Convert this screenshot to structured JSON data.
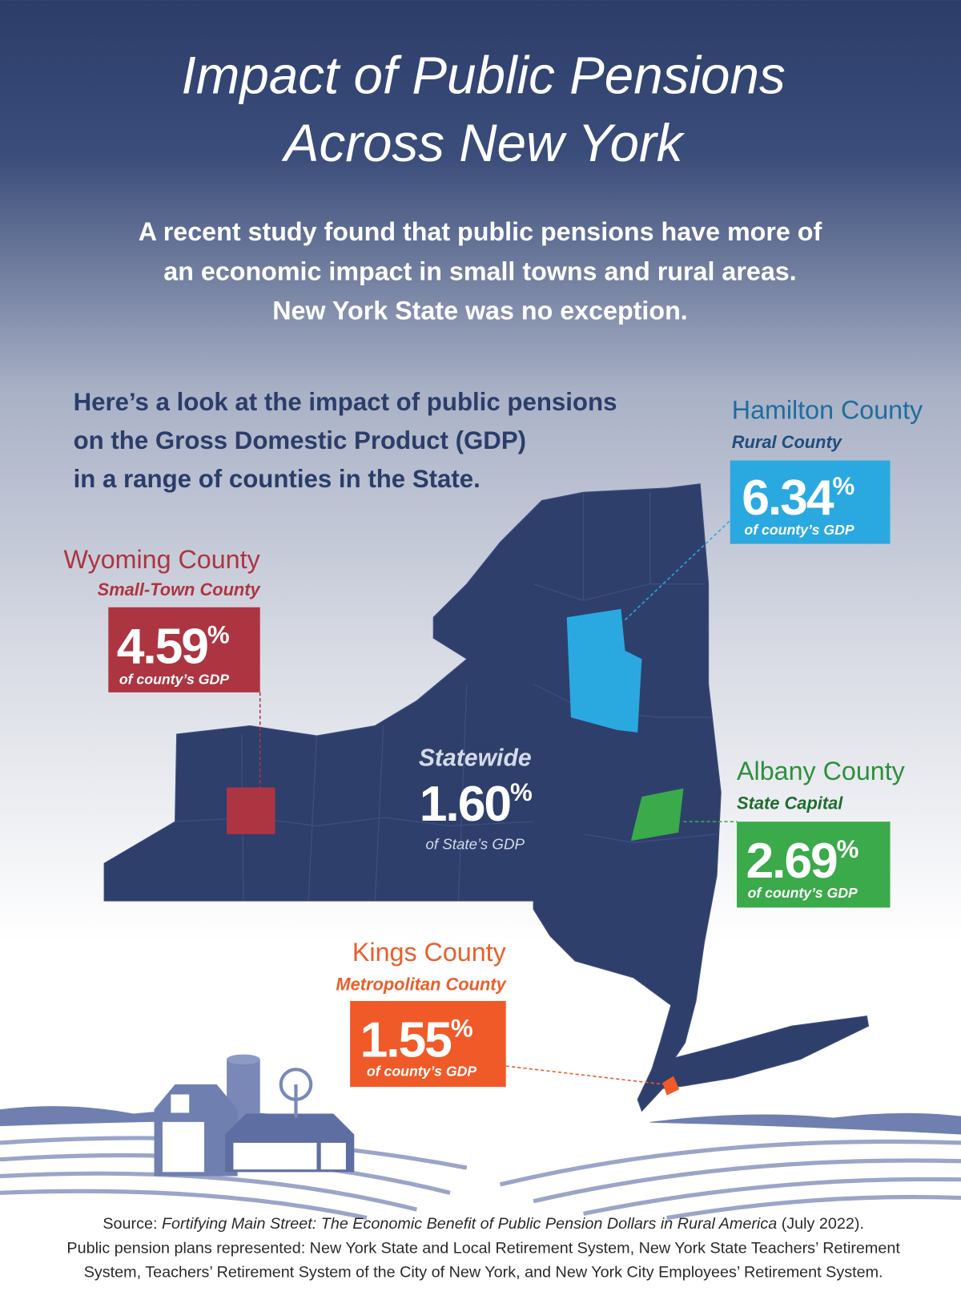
{
  "title": [
    "Impact of Public Pensions",
    "Across New York"
  ],
  "intro": [
    "A recent study found that public pensions have more of",
    "an economic impact in small towns and rural areas.",
    "New York State was no exception."
  ],
  "lead": [
    "Here’s a look at the impact of public pensions",
    "on the Gross Domestic Product (GDP)",
    "in a range of counties in the State."
  ],
  "counties": [
    {
      "name": "Hamilton County",
      "kind": "Rural County",
      "value": "6.34",
      "unit": "%",
      "caption": "of county’s GDP"
    },
    {
      "name": "Wyoming County",
      "kind": "Small-Town County",
      "value": "4.59",
      "unit": "%",
      "caption": "of county’s GDP"
    },
    {
      "name": "Albany County",
      "kind": "State Capital",
      "value": "2.69",
      "unit": "%",
      "caption": "of county’s GDP"
    },
    {
      "name": "Kings County",
      "kind": "Metropolitan County",
      "value": "1.55",
      "unit": "%",
      "caption": "of county’s GDP"
    }
  ],
  "statewide": {
    "label": "Statewide",
    "value": "1.60",
    "unit": "%",
    "caption": "of State’s GDP"
  },
  "source": {
    "prefix": "Source: ",
    "title": "Fortifying Main Street: The Economic Benefit of Public Pension Dollars in Rural America",
    "suffix": " (July 2022).",
    "plans": [
      "Public pension plans represented: New York State and Local Retirement System, New York State Teachers’ Retirement",
      "System, Teachers’ Retirement System of the City of New York, and New York City Employees’ Retirement System."
    ]
  }
}
